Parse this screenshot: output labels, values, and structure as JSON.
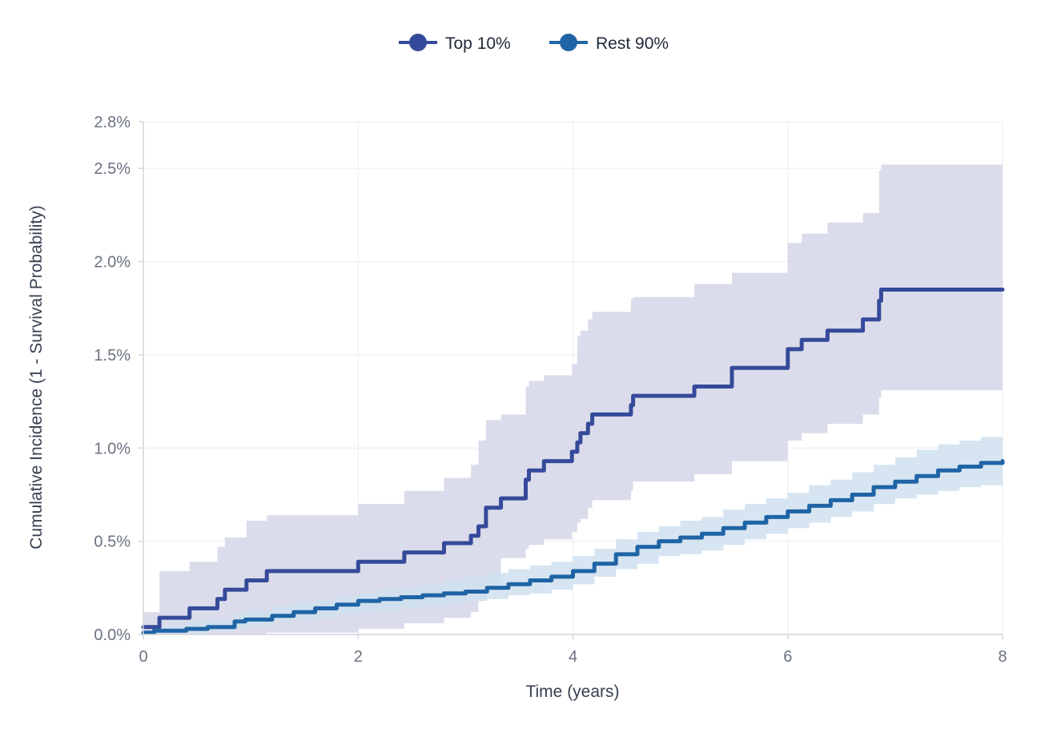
{
  "chart_data": {
    "type": "line",
    "title": "",
    "xlabel": "Time (years)",
    "ylabel": "Cumulative Incidence (1 - Survival Probability)",
    "xlim": [
      0,
      8
    ],
    "ylim": [
      0,
      0.0275
    ],
    "x_ticks": [
      0,
      2,
      4,
      6,
      8
    ],
    "x_tick_labels": [
      "0",
      "2",
      "4",
      "6",
      "8"
    ],
    "y_ticks": [
      0,
      0.005,
      0.01,
      0.015,
      0.02,
      0.025,
      0.0275
    ],
    "y_tick_labels": [
      "0.0%",
      "0.5%",
      "1.0%",
      "1.5%",
      "2.0%",
      "2.5%",
      "2.8%"
    ],
    "grid": true,
    "legend_position": "top-center",
    "series": [
      {
        "name": "Top 10%",
        "color": "#354a9a",
        "band_color": "#d9daea",
        "step": true,
        "x": [
          0,
          0.15,
          0.43,
          0.69,
          0.76,
          0.96,
          1.15,
          2.0,
          2.43,
          2.8,
          3.05,
          3.12,
          3.19,
          3.33,
          3.56,
          3.59,
          3.73,
          3.99,
          4.04,
          4.07,
          4.14,
          4.18,
          4.54,
          4.56,
          5.13,
          5.48,
          6.0,
          6.13,
          6.37,
          6.7,
          6.85,
          6.87,
          8.0
        ],
        "y": [
          0.0004,
          0.0009,
          0.0014,
          0.0019,
          0.0024,
          0.0029,
          0.0034,
          0.0039,
          0.0044,
          0.0049,
          0.0053,
          0.0058,
          0.0068,
          0.0073,
          0.0083,
          0.0088,
          0.0093,
          0.0098,
          0.0103,
          0.0108,
          0.0113,
          0.0118,
          0.0123,
          0.0128,
          0.0133,
          0.0143,
          0.0153,
          0.0158,
          0.0163,
          0.0169,
          0.0179,
          0.0185,
          0.0185
        ],
        "lower": [
          0.0,
          0.0,
          0.0,
          0.0,
          0.0,
          0.0,
          0.0001,
          0.0003,
          0.0006,
          0.0009,
          0.0012,
          0.0018,
          0.0027,
          0.0041,
          0.0046,
          0.0048,
          0.0051,
          0.0055,
          0.006,
          0.0062,
          0.0068,
          0.0072,
          0.0077,
          0.0082,
          0.0086,
          0.0093,
          0.0104,
          0.0108,
          0.0113,
          0.0118,
          0.0127,
          0.0131,
          0.0135
        ],
        "upper": [
          0.0012,
          0.0034,
          0.0039,
          0.0047,
          0.0052,
          0.0061,
          0.0064,
          0.007,
          0.0077,
          0.0084,
          0.0091,
          0.0104,
          0.0115,
          0.0118,
          0.0133,
          0.0136,
          0.0139,
          0.0145,
          0.016,
          0.0163,
          0.0169,
          0.0173,
          0.018,
          0.0181,
          0.0188,
          0.0194,
          0.021,
          0.0215,
          0.0221,
          0.0226,
          0.0249,
          0.0252,
          0.0254
        ]
      },
      {
        "name": "Rest 90%",
        "color": "#1f64a5",
        "band_color": "#cfe0ef",
        "step": true,
        "x": [
          0,
          0.1,
          0.2,
          0.4,
          0.6,
          0.85,
          0.95,
          1.2,
          1.4,
          1.6,
          1.8,
          2.0,
          2.2,
          2.4,
          2.6,
          2.8,
          3.0,
          3.2,
          3.4,
          3.6,
          3.8,
          4.0,
          4.2,
          4.4,
          4.6,
          4.8,
          5.0,
          5.2,
          5.4,
          5.6,
          5.8,
          6.0,
          6.2,
          6.4,
          6.6,
          6.8,
          7.0,
          7.2,
          7.4,
          7.6,
          7.8,
          8.0
        ],
        "y": [
          0.0001,
          0.0002,
          0.0002,
          0.0003,
          0.0004,
          0.0007,
          0.0008,
          0.001,
          0.0012,
          0.0014,
          0.0016,
          0.0018,
          0.0019,
          0.002,
          0.0021,
          0.0022,
          0.0023,
          0.0025,
          0.0027,
          0.0029,
          0.0031,
          0.0034,
          0.0038,
          0.0043,
          0.0047,
          0.005,
          0.0052,
          0.0054,
          0.0057,
          0.006,
          0.0063,
          0.0066,
          0.0069,
          0.0072,
          0.0075,
          0.0079,
          0.0082,
          0.0085,
          0.0088,
          0.009,
          0.0092,
          0.0093
        ],
        "lower": [
          0.0,
          0.0,
          0.0001,
          0.0001,
          0.0002,
          0.0004,
          0.0005,
          0.0007,
          0.0008,
          0.0009,
          0.0011,
          0.0012,
          0.0013,
          0.0014,
          0.0015,
          0.0016,
          0.0018,
          0.0019,
          0.0021,
          0.0022,
          0.0024,
          0.0027,
          0.0031,
          0.0035,
          0.0038,
          0.0042,
          0.0043,
          0.0045,
          0.0048,
          0.0051,
          0.0054,
          0.0057,
          0.006,
          0.0063,
          0.0066,
          0.007,
          0.0073,
          0.0075,
          0.0077,
          0.0079,
          0.008,
          0.0081
        ],
        "upper": [
          0.0002,
          0.0004,
          0.0005,
          0.0007,
          0.0008,
          0.0011,
          0.0013,
          0.0015,
          0.0017,
          0.0019,
          0.0021,
          0.0022,
          0.0024,
          0.0025,
          0.0027,
          0.0029,
          0.0031,
          0.0033,
          0.0035,
          0.0037,
          0.0039,
          0.0042,
          0.0046,
          0.0051,
          0.0055,
          0.0058,
          0.0061,
          0.0063,
          0.0067,
          0.007,
          0.0073,
          0.0076,
          0.008,
          0.0083,
          0.0087,
          0.0091,
          0.0095,
          0.0099,
          0.0102,
          0.0104,
          0.0106,
          0.0107
        ]
      }
    ]
  }
}
